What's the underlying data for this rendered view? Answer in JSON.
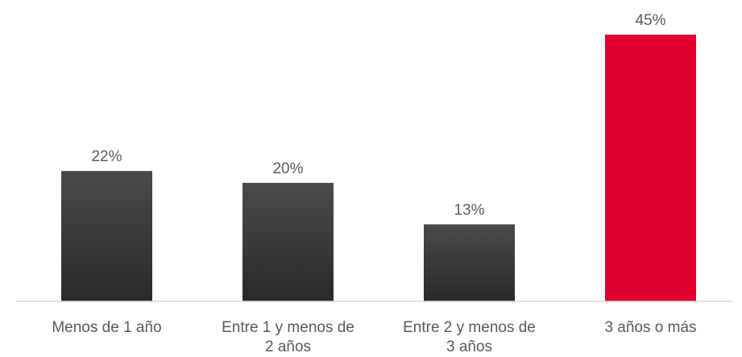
{
  "chart_data": {
    "type": "bar",
    "categories": [
      [
        "Menos de 1 año"
      ],
      [
        "Entre 1 y menos de",
        "2 años"
      ],
      [
        "Entre 2 y menos de",
        "3 años"
      ],
      [
        "3 años o más"
      ]
    ],
    "values": [
      22,
      20,
      13,
      45
    ],
    "value_labels": [
      "22%",
      "20%",
      "13%",
      "45%"
    ],
    "title": "",
    "xlabel": "",
    "ylabel": "",
    "ylim": [
      0,
      45
    ],
    "grid": false,
    "legend": "none",
    "colors": {
      "default_bar": "#3a3a3a",
      "highlight_bar": "#e0002d",
      "highlight_index": 3,
      "text": "#595959",
      "axis": "#d9d9d9"
    }
  }
}
